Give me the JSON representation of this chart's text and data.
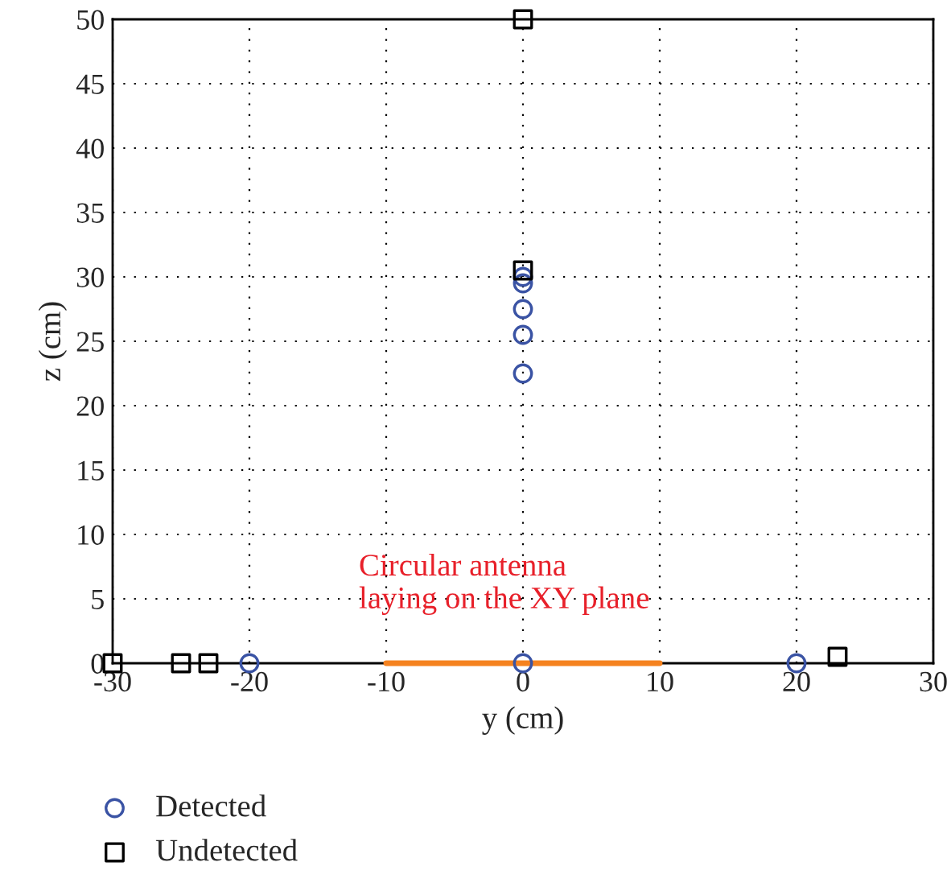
{
  "chart_data": {
    "type": "scatter",
    "xlabel": "y (cm)",
    "ylabel": "z (cm)",
    "xlim": [
      -30,
      30
    ],
    "ylim": [
      0,
      50
    ],
    "xticks": [
      -30,
      -20,
      -10,
      0,
      10,
      20,
      30
    ],
    "yticks": [
      0,
      5,
      10,
      15,
      20,
      25,
      30,
      35,
      40,
      45,
      50
    ],
    "grid": true,
    "legend": "bottom left",
    "annotations": [
      "Circular antenna\nlaying on the XY plane"
    ],
    "series": [
      {
        "type": "line",
        "color": "#f5821f",
        "x": [
          -10,
          10
        ],
        "values": [
          0,
          0
        ],
        "marker": "none",
        "line_style": "solid"
      },
      {
        "name": "Detected",
        "color": "#3a53a4",
        "marker": "circle",
        "x": [
          -20,
          0,
          20,
          0,
          0,
          0,
          0,
          0
        ],
        "values": [
          0,
          0,
          0,
          22.5,
          25.5,
          27.5,
          29.5,
          30
        ]
      },
      {
        "name": "Undetected",
        "color": "#000000",
        "marker": "square",
        "x": [
          -30,
          -25,
          -23,
          23,
          0,
          0
        ],
        "values": [
          0,
          0,
          0,
          0.5,
          30.5,
          50
        ]
      }
    ]
  }
}
